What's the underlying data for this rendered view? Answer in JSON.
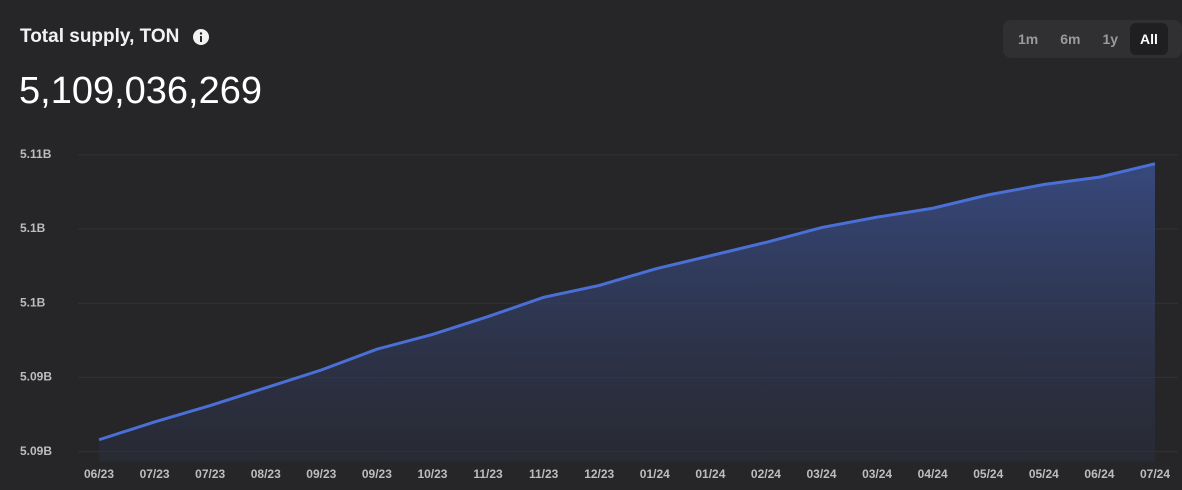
{
  "header": {
    "title": "Total supply, TON",
    "value": "5,109,036,269"
  },
  "ranges": [
    "1m",
    "6m",
    "1y",
    "All"
  ],
  "chart_data": {
    "type": "area",
    "categories": [
      "06/23",
      "07/23",
      "07/23",
      "08/23",
      "09/23",
      "09/23",
      "10/23",
      "11/23",
      "11/23",
      "12/23",
      "01/24",
      "01/24",
      "02/24",
      "03/24",
      "03/24",
      "04/24",
      "05/24",
      "05/24",
      "06/24",
      "07/24"
    ],
    "values": [
      5090300000,
      5091500000,
      5092600000,
      5093800000,
      5095000000,
      5096400000,
      5097400000,
      5098600000,
      5099900000,
      5100700000,
      5101800000,
      5102700000,
      5103600000,
      5104600000,
      5105300000,
      5105900000,
      5106800000,
      5107500000,
      5108000000,
      5108900000
    ],
    "color": "#4a6fd6",
    "ylim": [
      5088800000,
      5110500000
    ],
    "yticks": [
      {
        "value": 5089500000,
        "label": "5.09B"
      },
      {
        "value": 5094500000,
        "label": "5.09B"
      },
      {
        "value": 5099500000,
        "label": "5.1B"
      },
      {
        "value": 5104500000,
        "label": "5.1B"
      },
      {
        "value": 5109500000,
        "label": "5.11B"
      }
    ],
    "grid": true
  }
}
